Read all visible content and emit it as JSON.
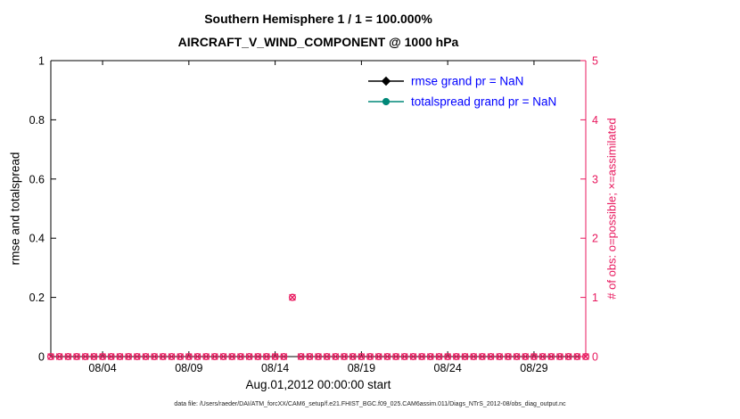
{
  "chart_data": {
    "type": "scatter",
    "title": "Southern Hemisphere 1 / 1 = 100.000%",
    "subtitle": "AIRCRAFT_V_WIND_COMPONENT @ 1000 hPa",
    "xlabel": "Aug.01,2012 00:00:00 start",
    "left_axis": {
      "label": "rmse and totalspread",
      "lim": [
        0,
        1
      ],
      "ticks": [
        0,
        0.2,
        0.4,
        0.6,
        0.8,
        1
      ],
      "tick_labels": [
        "0",
        "0.2",
        "0.4",
        "0.6",
        "0.8",
        "1"
      ],
      "color": "#000000"
    },
    "right_axis": {
      "label": "# of obs: o=possible; ×=assimilated",
      "lim": [
        0,
        5
      ],
      "ticks": [
        0,
        1,
        2,
        3,
        4,
        5
      ],
      "tick_labels": [
        "0",
        "1",
        "2",
        "3",
        "4",
        "5"
      ],
      "color": "#e8175d"
    },
    "x_axis": {
      "lim_days": [
        1,
        32
      ],
      "ticks_days": [
        4,
        9,
        14,
        19,
        24,
        29
      ],
      "tick_labels": [
        "08/04",
        "08/09",
        "08/14",
        "08/19",
        "08/24",
        "08/29"
      ]
    },
    "legend": [
      {
        "label": "rmse grand pr = NaN",
        "marker": "diamond",
        "color": "#000000",
        "text_color": "#0000ff"
      },
      {
        "label": "totalspread grand pr = NaN",
        "marker": "circle",
        "color": "#008878",
        "text_color": "#0000ff"
      }
    ],
    "series": [
      {
        "name": "rmse",
        "grand_pr": "NaN",
        "note": "all values NaN, no line plotted"
      },
      {
        "name": "totalspread",
        "grand_pr": "NaN",
        "note": "all values NaN, no line plotted"
      }
    ],
    "obs_counts": {
      "axis": "right",
      "color": "#e8175d",
      "x_days_start": 1,
      "x_days_end": 32,
      "x_step_days": 0.5,
      "baseline_value": 0,
      "nonzero_points": [
        {
          "x_day": 15,
          "possible": 1,
          "assimilated": 1
        }
      ]
    },
    "grid": false,
    "legend_position": "upper-center-right, no box"
  },
  "footer": {
    "text": "data file: /Users/raeder/DAI/ATM_forcXX/CAM6_setup/f.e21.FHIST_BGC.f09_025.CAM6assim.011/Diags_NTrS_2012-08/obs_diag_output.nc"
  }
}
